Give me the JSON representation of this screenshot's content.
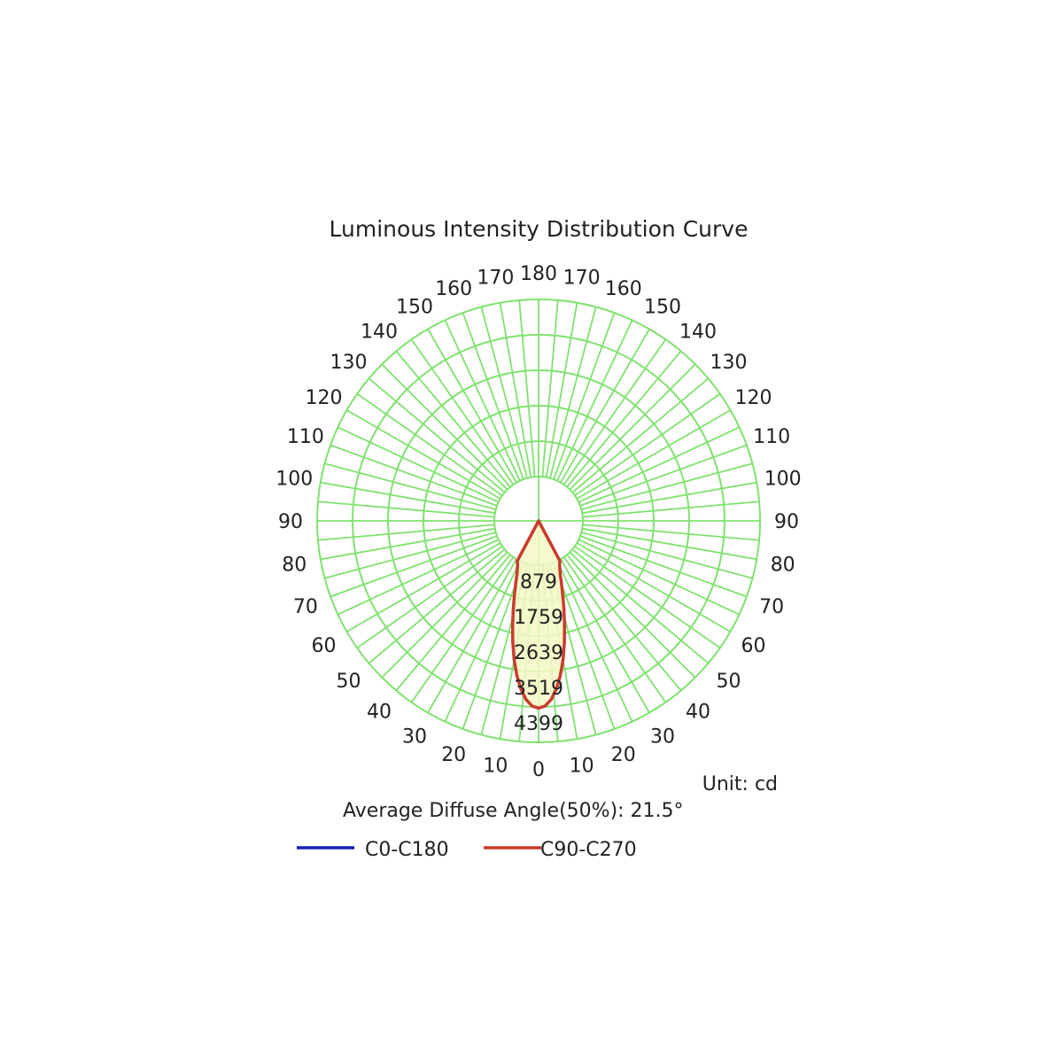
{
  "chart_data": {
    "type": "polar",
    "title": "Luminous Intensity Distribution Curve",
    "unit_label": "Unit: cd",
    "average_diffuse_angle": "Average Diffuse Angle(50%): 21.5°",
    "radial_ticks": [
      879,
      1759,
      2639,
      3519,
      4399
    ],
    "radial_max": 4399,
    "angle_labels": [
      0,
      10,
      20,
      30,
      40,
      50,
      60,
      70,
      80,
      90,
      100,
      110,
      120,
      130,
      140,
      150,
      160,
      170,
      180
    ],
    "grid_color": "#7fe26e",
    "fill_color": "#f4f7c6",
    "series": [
      {
        "name": "C0-C180",
        "color": "#1520b8",
        "angles": [
          0,
          2,
          4,
          6,
          8,
          10,
          12,
          14,
          16,
          18,
          20,
          22,
          24,
          26,
          28,
          30
        ],
        "values": [
          3550,
          3500,
          3350,
          3100,
          2780,
          2400,
          1980,
          1560,
          1180,
          840,
          560,
          340,
          190,
          90,
          35,
          0
        ]
      },
      {
        "name": "C90-C270",
        "color": "#cc3a2c",
        "angles": [
          0,
          2,
          4,
          6,
          8,
          10,
          12,
          14,
          16,
          18,
          20,
          22,
          24,
          26,
          28,
          30
        ],
        "values": [
          3550,
          3500,
          3350,
          3100,
          2780,
          2400,
          1980,
          1560,
          1180,
          840,
          560,
          340,
          190,
          90,
          35,
          0
        ]
      }
    ]
  }
}
